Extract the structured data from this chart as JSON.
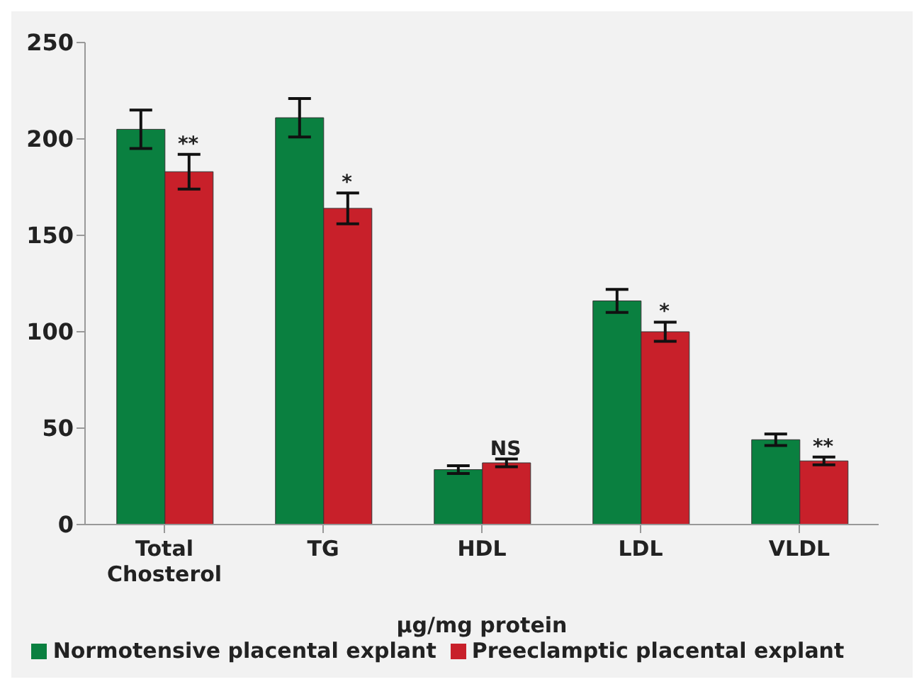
{
  "chart_data": {
    "type": "bar",
    "xlabel": "µg/mg protein",
    "categories": [
      "Total Chosterol",
      "TG",
      "HDL",
      "LDL",
      "VLDL"
    ],
    "series": [
      {
        "name": "Normotensive placental explant",
        "color": "#0a8040",
        "values": [
          205,
          211,
          28.5,
          116,
          44
        ],
        "errors": [
          10,
          10,
          2,
          6,
          3
        ]
      },
      {
        "name": "Preeclamptic placental explant",
        "color": "#c8202a",
        "values": [
          183,
          164,
          32,
          100,
          33
        ],
        "errors": [
          9,
          8,
          2,
          5,
          2
        ]
      }
    ],
    "annotations": [
      {
        "text": "**",
        "x": "Total Chosterol",
        "y": 192
      },
      {
        "text": "*",
        "x": "TG",
        "y": 172
      },
      {
        "text": "NS",
        "x": "HDL",
        "y": 34
      },
      {
        "text": "*",
        "x": "LDL",
        "y": 105
      },
      {
        "text": "**",
        "x": "VLDL",
        "y": 35
      }
    ],
    "ylim": [
      0,
      250
    ],
    "yticks": [
      0,
      50,
      100,
      150,
      200,
      250
    ],
    "legend": "bottom"
  }
}
